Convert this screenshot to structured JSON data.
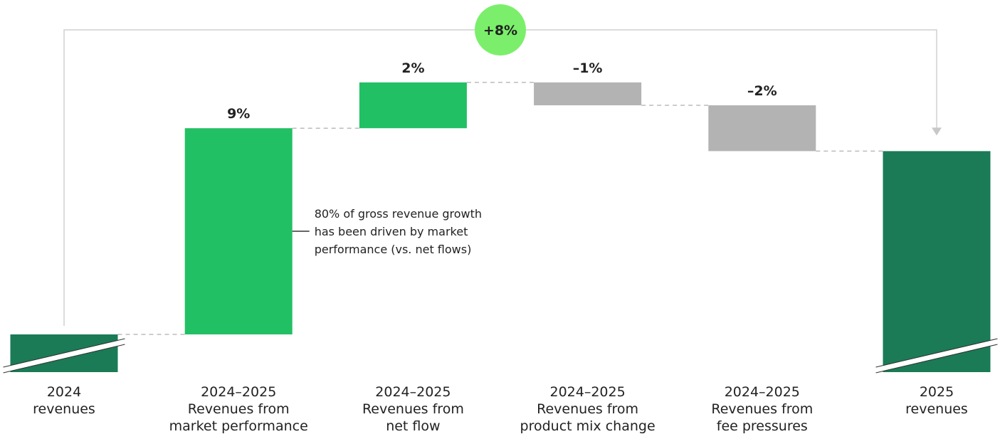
{
  "chart_data": {
    "type": "waterfall",
    "categories": [
      "2024\nrevenues",
      "2024–2025\nRevenues from\nmarket performance",
      "2024–2025\nRevenues from\nnet flow",
      "2024–2025\nRevenues from\nproduct mix change",
      "2024–2025\nRevenues from\nfee pressures",
      "2025\nrevenues"
    ],
    "values": [
      null,
      9,
      2,
      -1,
      -2,
      null
    ],
    "value_labels": [
      null,
      "9%",
      "2%",
      "–1%",
      "–2%",
      null
    ],
    "total": 8,
    "total_label": "+8%",
    "annotation": "80% of gross revenue growth\nhas been driven by market\nperformance (vs. net flows)",
    "colors": {
      "base": "#1a7b56",
      "positive": "#22c064",
      "negative": "#b3b3b3",
      "badge": "#7bef6b"
    }
  }
}
